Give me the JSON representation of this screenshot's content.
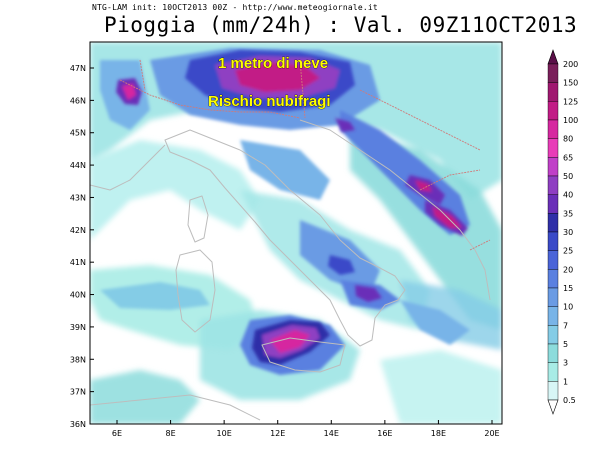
{
  "header": {
    "model_info": "NTG-LAM init: 10OCT2013 00Z - http://www.meteogiornale.it",
    "title": "Pioggia (mm/24h) : Val. 09Z11OCT2013"
  },
  "annotations": [
    "1 metro di neve",
    "Rischio nubifragi"
  ],
  "axes": {
    "lat_labels": [
      "47N",
      "46N",
      "45N",
      "44N",
      "43N",
      "42N",
      "41N",
      "40N",
      "39N",
      "38N",
      "37N",
      "36N"
    ],
    "lon_labels": [
      "6E",
      "8E",
      "10E",
      "12E",
      "14E",
      "16E",
      "18E",
      "20E"
    ]
  },
  "colorbar": {
    "labels": [
      "200",
      "150",
      "125",
      "100",
      "80",
      "65",
      "50",
      "40",
      "35",
      "30",
      "25",
      "20",
      "15",
      "10",
      "7",
      "5",
      "3",
      "1",
      "0.5"
    ],
    "colors": [
      "#7a1f5a",
      "#a01870",
      "#c21c86",
      "#d628a0",
      "#e83cb8",
      "#c040c8",
      "#8f3fc2",
      "#6a2fb8",
      "#2f2fa8",
      "#3a4ac8",
      "#4a64d8",
      "#5a80e0",
      "#6a9be4",
      "#78b4e8",
      "#84cce6",
      "#8cdcdc",
      "#a8ece6",
      "#d8f6f6"
    ],
    "top_arrow_color": "#5a1048",
    "bottom_arrow_color": "#ffffff"
  },
  "map_colors": {
    "sea_bg": "#ffffff",
    "coast": "#bdbdbd",
    "border": "#d07a7a"
  }
}
